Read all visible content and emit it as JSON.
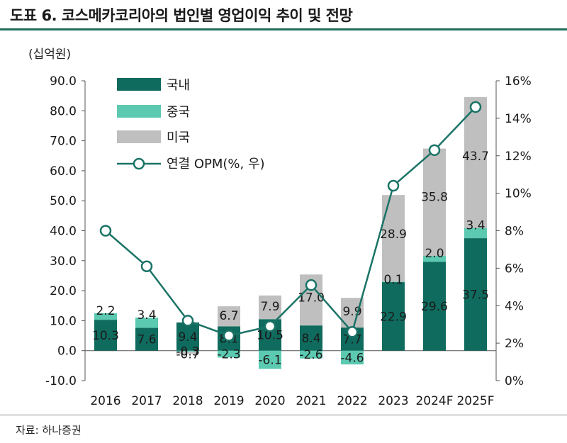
{
  "title": "도표 6. 코스메카코리아의 법인별 영업이익 추이 및 전망",
  "unit_label": "(십억원)",
  "source": "자료: 하나증권",
  "colors": {
    "domestic": "#0f6b5e",
    "china": "#5cc9b1",
    "us": "#bfbfbf",
    "line": "#1a7366",
    "accent": "#1f6f5c"
  },
  "chart_data": {
    "type": "bar",
    "stacked": true,
    "categories": [
      "2016",
      "2017",
      "2018",
      "2019",
      "2020",
      "2021",
      "2022",
      "2023",
      "2024F",
      "2025F"
    ],
    "series": [
      {
        "name": "국내",
        "values": [
          10.3,
          7.6,
          9.4,
          8.1,
          10.5,
          8.4,
          7.7,
          22.9,
          29.6,
          37.5
        ],
        "labels": [
          "10.3",
          "7.6",
          "9.4",
          "8.1",
          "10.5",
          "8.4",
          "7.7",
          "22.9",
          "29.6",
          "37.5"
        ]
      },
      {
        "name": "중국",
        "values": [
          2.2,
          3.4,
          -0.3,
          -2.3,
          -6.1,
          -2.6,
          -4.6,
          0.1,
          2.0,
          3.4
        ],
        "labels": [
          "2.2",
          "3.4",
          "-0.3",
          "-2.3",
          "-6.1",
          "-2.6",
          "-4.6",
          "0.1",
          "2.0",
          "3.4"
        ]
      },
      {
        "name": "미국",
        "values": [
          0,
          0,
          -0.7,
          6.7,
          7.9,
          17.0,
          9.9,
          28.9,
          35.8,
          43.7
        ],
        "labels": [
          "",
          "",
          "-0.7",
          "6.7",
          "7.9",
          "17.0",
          "9.9",
          "28.9",
          "35.8",
          "43.7"
        ]
      },
      {
        "name": "연결 OPM(%, 우)",
        "type": "line",
        "axis": "right",
        "values": [
          8.0,
          6.1,
          3.2,
          2.4,
          2.9,
          5.1,
          2.6,
          10.4,
          12.3,
          14.6
        ]
      }
    ],
    "ylim": [
      -10,
      90
    ],
    "y_ticks": [
      "-10.0",
      "0.0",
      "10.0",
      "20.0",
      "30.0",
      "40.0",
      "50.0",
      "60.0",
      "70.0",
      "80.0",
      "90.0"
    ],
    "y2lim": [
      0,
      16
    ],
    "y2_ticks": [
      "0%",
      "2%",
      "4%",
      "6%",
      "8%",
      "10%",
      "12%",
      "14%",
      "16%"
    ],
    "legend_position": "top-left",
    "grid": false
  }
}
